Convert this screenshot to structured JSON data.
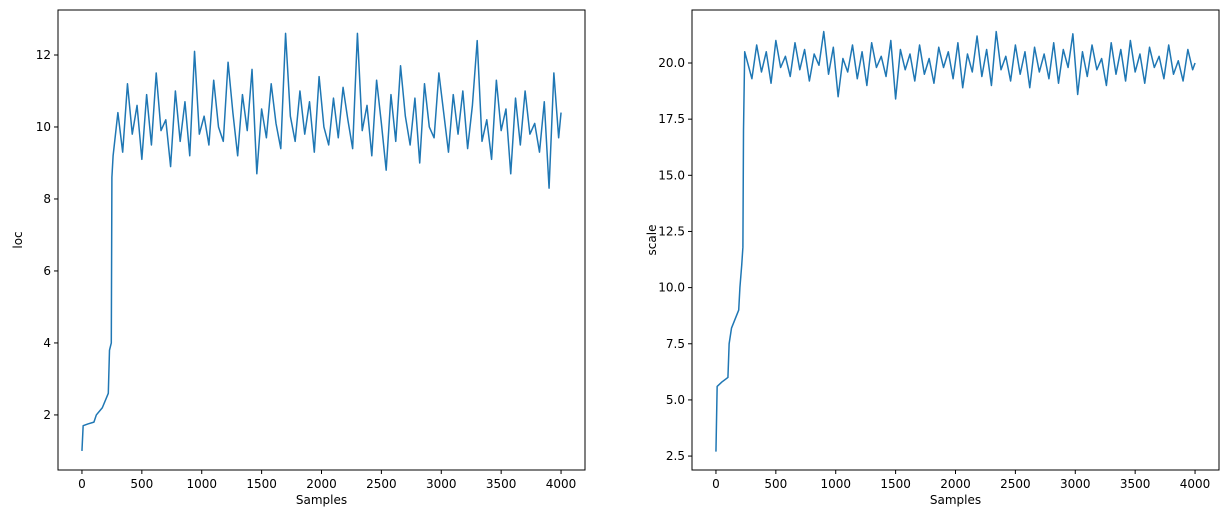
{
  "chart_data": [
    {
      "type": "line",
      "xlabel": "Samples",
      "ylabel": "loc",
      "xlim": [
        -200,
        4200
      ],
      "xticks": [
        0,
        500,
        1000,
        1500,
        2000,
        2500,
        3000,
        3500,
        4000
      ],
      "ylim": [
        0.47,
        13.25
      ],
      "yticks": [
        2,
        4,
        6,
        8,
        10,
        12
      ],
      "series": [
        {
          "color": "#1f77b4",
          "x": [
            0,
            10,
            50,
            100,
            120,
            170,
            220,
            230,
            245,
            250,
            260,
            300,
            340,
            380,
            420,
            460,
            500,
            540,
            580,
            620,
            660,
            700,
            740,
            780,
            820,
            860,
            900,
            940,
            980,
            1020,
            1060,
            1100,
            1140,
            1180,
            1220,
            1260,
            1300,
            1340,
            1380,
            1420,
            1460,
            1500,
            1540,
            1580,
            1620,
            1660,
            1700,
            1740,
            1780,
            1820,
            1860,
            1900,
            1940,
            1980,
            2020,
            2060,
            2100,
            2140,
            2180,
            2220,
            2260,
            2300,
            2340,
            2380,
            2420,
            2460,
            2500,
            2540,
            2580,
            2620,
            2660,
            2700,
            2740,
            2780,
            2820,
            2860,
            2900,
            2940,
            2980,
            3020,
            3060,
            3100,
            3140,
            3180,
            3220,
            3260,
            3300,
            3340,
            3380,
            3420,
            3460,
            3500,
            3540,
            3580,
            3620,
            3660,
            3700,
            3740,
            3780,
            3820,
            3860,
            3900,
            3940,
            3980,
            4000
          ],
          "values": [
            1.0,
            1.7,
            1.75,
            1.8,
            2.0,
            2.2,
            2.6,
            3.8,
            4.0,
            8.6,
            9.2,
            10.4,
            9.3,
            11.2,
            9.8,
            10.6,
            9.1,
            10.9,
            9.5,
            11.5,
            9.9,
            10.2,
            8.9,
            11.0,
            9.6,
            10.7,
            9.2,
            12.1,
            9.8,
            10.3,
            9.5,
            11.3,
            10.0,
            9.6,
            11.8,
            10.4,
            9.2,
            10.9,
            9.9,
            11.6,
            8.7,
            10.5,
            9.7,
            11.2,
            10.1,
            9.4,
            12.6,
            10.3,
            9.6,
            11.0,
            9.8,
            10.7,
            9.3,
            11.4,
            10.0,
            9.5,
            10.8,
            9.7,
            11.1,
            10.2,
            9.4,
            12.6,
            9.9,
            10.6,
            9.2,
            11.3,
            10.1,
            8.8,
            10.9,
            9.6,
            11.7,
            10.3,
            9.5,
            10.8,
            9.0,
            11.2,
            10.0,
            9.7,
            11.5,
            10.4,
            9.3,
            10.9,
            9.8,
            11.0,
            9.4,
            10.6,
            12.4,
            9.6,
            10.2,
            9.1,
            11.3,
            9.9,
            10.5,
            8.7,
            10.8,
            9.5,
            11.0,
            9.8,
            10.1,
            9.3,
            10.7,
            8.3,
            11.5,
            9.7,
            10.4
          ]
        }
      ]
    },
    {
      "type": "line",
      "xlabel": "Samples",
      "ylabel": "scale",
      "xlim": [
        -200,
        4200
      ],
      "xticks": [
        0,
        500,
        1000,
        1500,
        2000,
        2500,
        3000,
        3500,
        4000
      ],
      "ylim": [
        1.88,
        22.36
      ],
      "yticks": [
        2.5,
        {
          "value": 5,
          "label": "5.0"
        },
        7.5,
        {
          "value": 10,
          "label": "10.0"
        },
        12.5,
        {
          "value": 15,
          "label": "15.0"
        },
        17.5,
        {
          "value": 20,
          "label": "20.0"
        }
      ],
      "series": [
        {
          "color": "#1f77b4",
          "x": [
            0,
            10,
            50,
            100,
            110,
            130,
            190,
            200,
            215,
            225,
            230,
            240,
            300,
            340,
            380,
            420,
            460,
            500,
            540,
            580,
            620,
            660,
            700,
            740,
            780,
            820,
            860,
            900,
            940,
            980,
            1020,
            1060,
            1100,
            1140,
            1180,
            1220,
            1260,
            1300,
            1340,
            1380,
            1420,
            1460,
            1500,
            1540,
            1580,
            1620,
            1660,
            1700,
            1740,
            1780,
            1820,
            1860,
            1900,
            1940,
            1980,
            2020,
            2060,
            2100,
            2140,
            2180,
            2220,
            2260,
            2300,
            2340,
            2380,
            2420,
            2460,
            2500,
            2540,
            2580,
            2620,
            2660,
            2700,
            2740,
            2780,
            2820,
            2860,
            2900,
            2940,
            2980,
            3020,
            3060,
            3100,
            3140,
            3180,
            3220,
            3260,
            3300,
            3340,
            3380,
            3420,
            3460,
            3500,
            3540,
            3580,
            3620,
            3660,
            3700,
            3740,
            3780,
            3820,
            3860,
            3900,
            3940,
            3980,
            4000
          ],
          "values": [
            2.7,
            5.6,
            5.8,
            6.0,
            7.5,
            8.2,
            9.0,
            10.0,
            11.0,
            11.8,
            17.0,
            20.5,
            19.3,
            20.8,
            19.6,
            20.5,
            19.1,
            21.0,
            19.8,
            20.3,
            19.4,
            20.9,
            19.7,
            20.6,
            19.2,
            20.4,
            19.9,
            21.4,
            19.5,
            20.7,
            18.5,
            20.2,
            19.6,
            20.8,
            19.3,
            20.5,
            19.0,
            20.9,
            19.8,
            20.3,
            19.4,
            21.0,
            18.4,
            20.6,
            19.7,
            20.4,
            19.2,
            20.8,
            19.5,
            20.2,
            19.1,
            20.7,
            19.8,
            20.5,
            19.3,
            20.9,
            18.9,
            20.4,
            19.6,
            21.2,
            19.4,
            20.6,
            19.0,
            21.4,
            19.7,
            20.3,
            19.2,
            20.8,
            19.5,
            20.5,
            18.9,
            20.7,
            19.6,
            20.4,
            19.3,
            20.9,
            19.1,
            20.6,
            19.8,
            21.3,
            18.6,
            20.5,
            19.4,
            20.8,
            19.7,
            20.2,
            19.0,
            20.9,
            19.5,
            20.6,
            19.2,
            21.0,
            19.6,
            20.4,
            19.1,
            20.7,
            19.8,
            20.3,
            19.3,
            20.8,
            19.5,
            20.1,
            19.2,
            20.6,
            19.7,
            20.0
          ]
        }
      ]
    }
  ]
}
